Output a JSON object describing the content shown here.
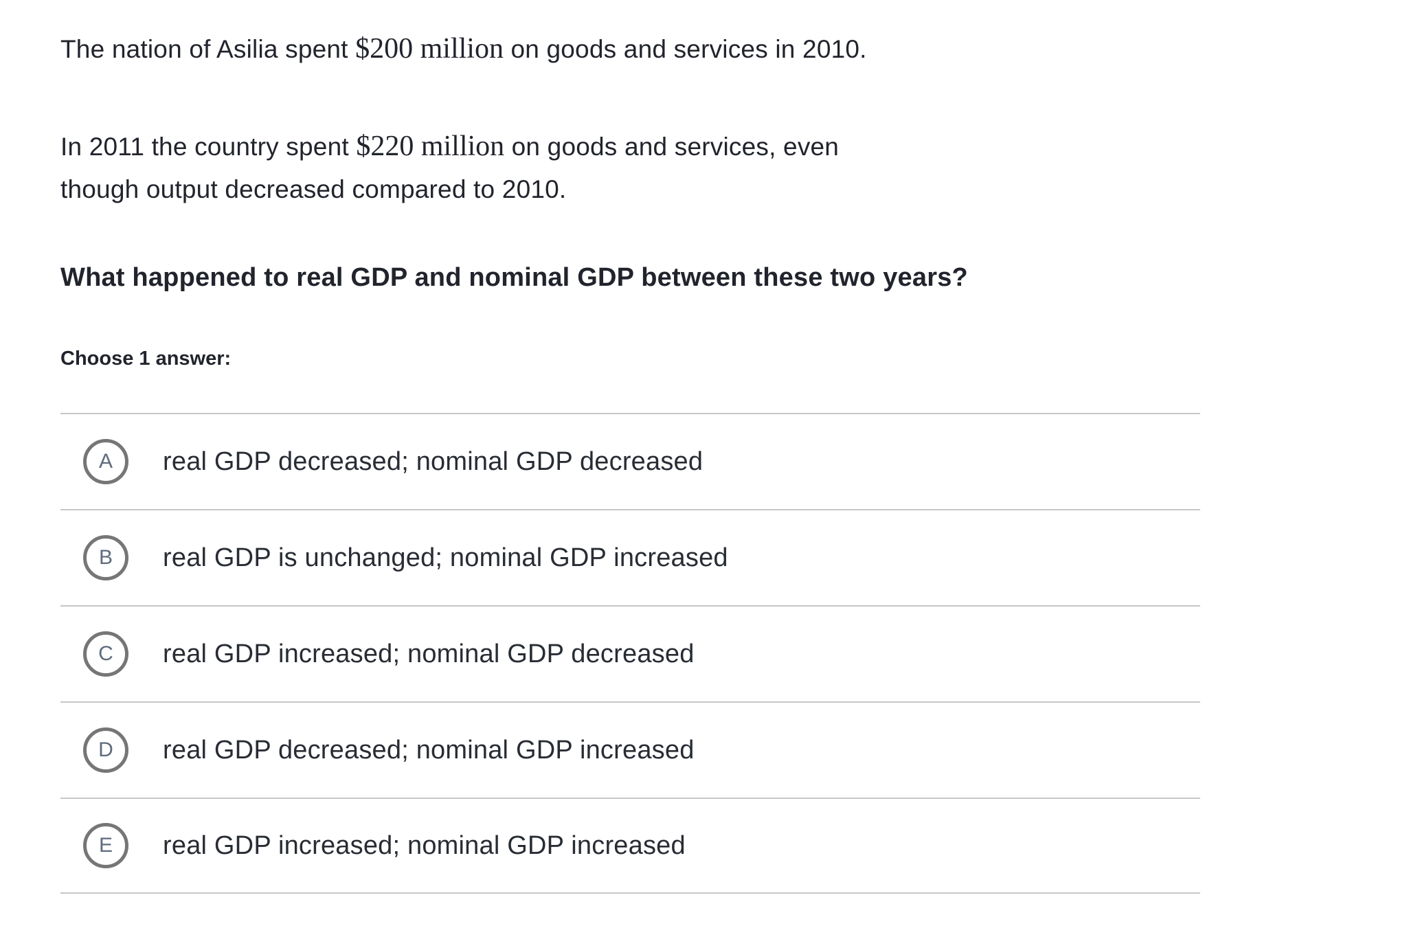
{
  "question": {
    "paragraph1": {
      "pre": "The nation of Asilia spent ",
      "amount": "$200 million",
      "post": " on goods and services in 2010."
    },
    "paragraph2": {
      "pre": "In 2011 the country spent ",
      "amount": "$220 million",
      "post": " on goods and services, even",
      "line2": "though output decreased compared to 2010."
    },
    "prompt": "What happened to real GDP and nominal GDP between these two years?",
    "choose_label": "Choose 1 answer:"
  },
  "options": [
    {
      "letter": "A",
      "text": "real GDP decreased; nominal GDP decreased"
    },
    {
      "letter": "B",
      "text": "real GDP is unchanged; nominal GDP increased"
    },
    {
      "letter": "C",
      "text": "real GDP increased; nominal GDP decreased"
    },
    {
      "letter": "D",
      "text": "real GDP decreased; nominal GDP increased"
    },
    {
      "letter": "E",
      "text": "real GDP increased; nominal GDP increased"
    }
  ],
  "colors": {
    "text": "#21242c",
    "radio_border": "#767676",
    "radio_letter": "#5d6b7c",
    "divider": "#c7c7c7",
    "background": "#ffffff"
  }
}
